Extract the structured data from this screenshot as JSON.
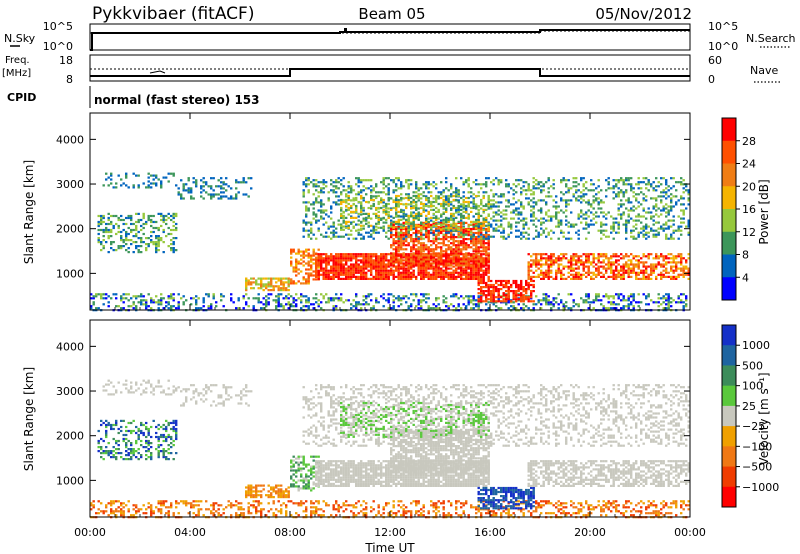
{
  "header": {
    "station": "Pykkvibaer (fitACF)",
    "beam": "Beam 05",
    "date": "05/Nov/2012"
  },
  "top_panels": {
    "nsky": {
      "label": "N.Sky",
      "left_ticks": [
        "10^5",
        "10^0"
      ],
      "right_label": "N.Search",
      "right_ticks": [
        "10^5",
        "10^0"
      ]
    },
    "freq": {
      "label_line1": "Freq.",
      "label_line2": "[MHz]",
      "left_ticks": [
        "18",
        "8"
      ],
      "right_label": "Nave",
      "right_ticks": [
        "60",
        "0"
      ]
    },
    "cpid": {
      "label": "CPID",
      "text": "normal (fast stereo) 153"
    }
  },
  "chart_data": [
    {
      "type": "heatmap",
      "title": "",
      "xlabel": "",
      "ylabel": "Slant Range [km]",
      "xlim": [
        0,
        24
      ],
      "ylim": [
        180,
        4590
      ],
      "xticks": [
        0,
        4,
        8,
        12,
        16,
        20,
        24
      ],
      "xtick_labels": [
        "00:00",
        "04:00",
        "08:00",
        "12:00",
        "16:00",
        "20:00",
        "00:00"
      ],
      "yticks": [
        1000,
        2000,
        3000,
        4000
      ],
      "ytick_labels": [
        "1000",
        "2000",
        "3000",
        "4000"
      ],
      "colorbar": {
        "label": "Power [dB]",
        "ticks": [
          "28",
          "24",
          "20",
          "16",
          "12",
          "8",
          "4"
        ],
        "colors": [
          "#ff0000",
          "#ff5000",
          "#f07d14",
          "#f5b400",
          "#96c83c",
          "#3c965a",
          "#0064be",
          "#0000ff"
        ]
      }
    },
    {
      "type": "heatmap",
      "title": "",
      "xlabel": "Time UT",
      "ylabel": "Slant Range [km]",
      "xlim": [
        0,
        24
      ],
      "ylim": [
        180,
        4590
      ],
      "xticks": [
        0,
        4,
        8,
        12,
        16,
        20,
        24
      ],
      "xtick_labels": [
        "00:00",
        "04:00",
        "08:00",
        "12:00",
        "16:00",
        "20:00",
        "00:00"
      ],
      "yticks": [
        1000,
        2000,
        3000,
        4000
      ],
      "ytick_labels": [
        "1000",
        "2000",
        "3000",
        "4000"
      ],
      "colorbar": {
        "label": "Velocity [m s⁻¹]",
        "ticks": [
          "1000",
          "500",
          "100",
          "25",
          "−25",
          "−100",
          "−500",
          "−1000"
        ],
        "colors": [
          "#1430c8",
          "#1e64a0",
          "#3c8c5a",
          "#5ac83c",
          "#c8c8be",
          "#f0a000",
          "#f07814",
          "#f03c00",
          "#ff0000"
        ]
      }
    }
  ]
}
